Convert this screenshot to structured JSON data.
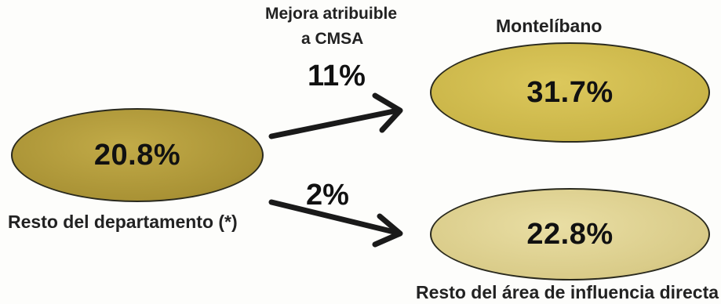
{
  "left_node": {
    "value": "20.8%",
    "label": "Resto del departamento (*)",
    "color": "#b09a3a"
  },
  "top_right_node": {
    "value": "31.7%",
    "label": "Montelíbano",
    "color": "#cdb94c"
  },
  "bottom_right_node": {
    "value": "22.8%",
    "label": "Resto del área de influencia directa",
    "color": "#dccf8f"
  },
  "top_arrow": {
    "caption_line1": "Mejora atribuible",
    "caption_line2": "a CMSA",
    "value": "11%"
  },
  "bottom_arrow": {
    "value": "2%"
  }
}
